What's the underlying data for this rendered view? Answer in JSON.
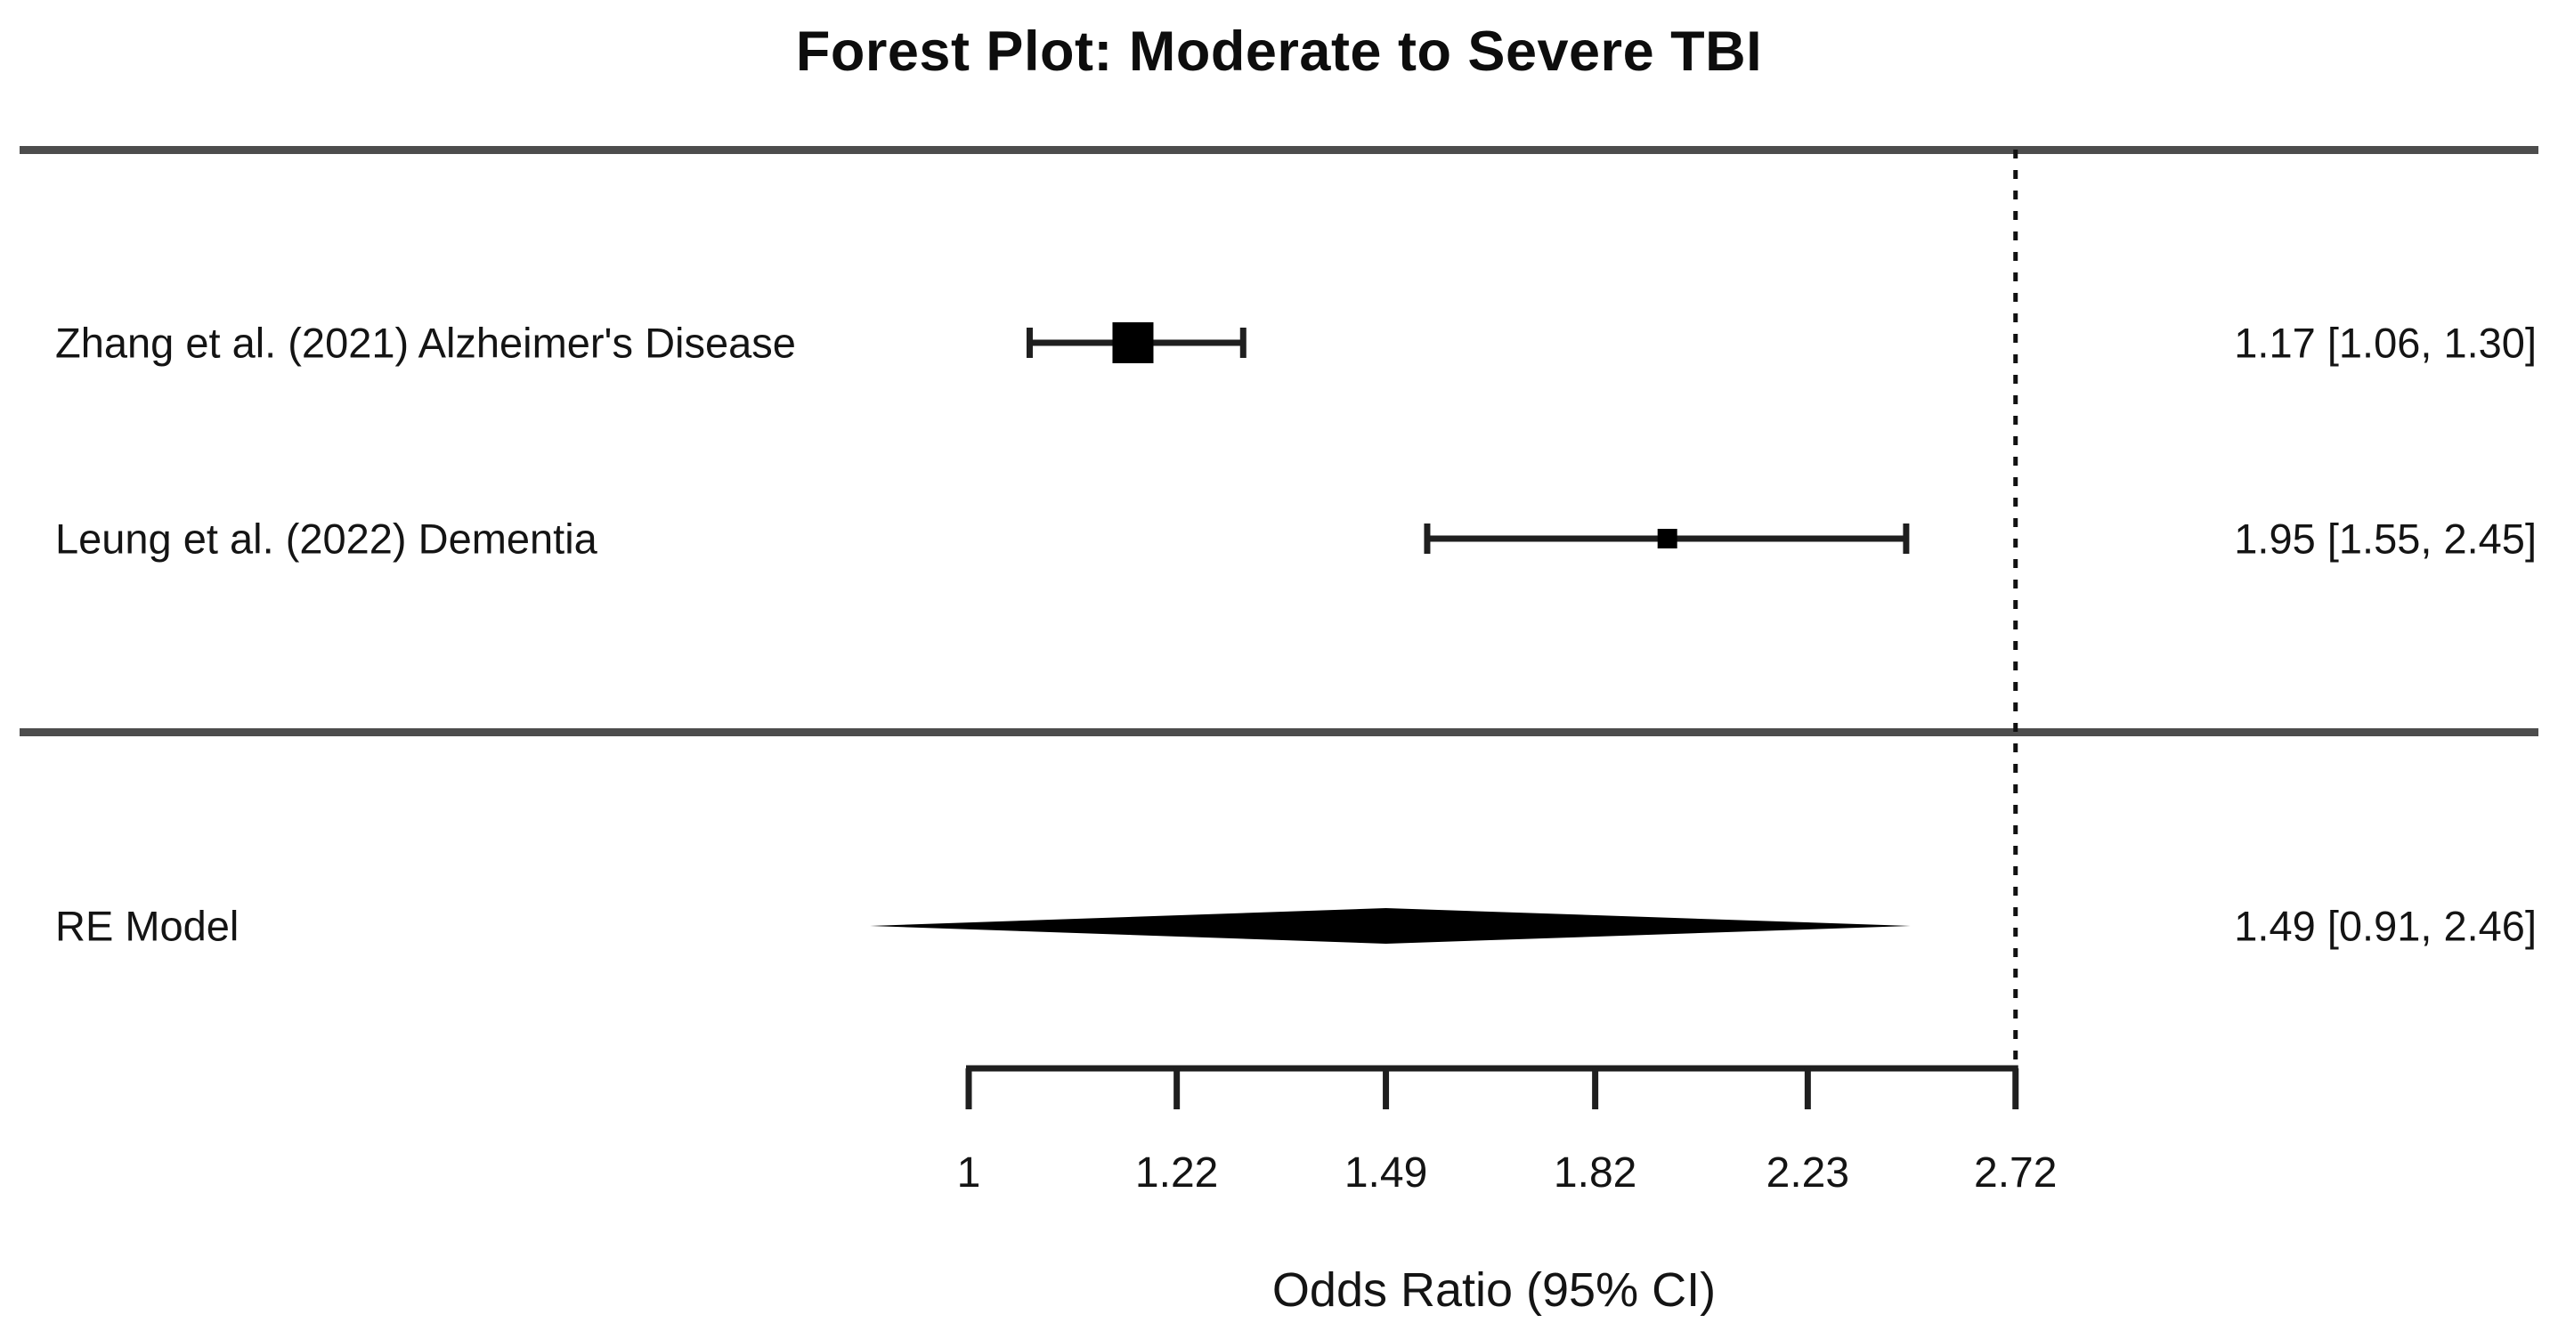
{
  "chart_data": {
    "type": "forest",
    "scale": "log",
    "title": "Forest Plot: Moderate to Severe TBI",
    "xlabel": "Odds Ratio (95% CI)",
    "x_ticks": [
      1,
      1.22,
      1.49,
      1.82,
      2.23,
      2.72
    ],
    "tick_labels": [
      "1",
      "1.22",
      "1.49",
      "1.82",
      "2.23",
      "2.72"
    ],
    "xlim": [
      1,
      2.72
    ],
    "reference_line_at": 2.72,
    "grid": false,
    "studies": [
      {
        "label": "Zhang et al. (2021) Alzheimer's Disease",
        "or": 1.17,
        "ci_low": 1.06,
        "ci_high": 1.3,
        "estimate_text": "1.17 [1.06, 1.30]"
      },
      {
        "label": "Leung et al. (2022) Dementia",
        "or": 1.95,
        "ci_low": 1.55,
        "ci_high": 2.45,
        "estimate_text": "1.95 [1.55, 2.45]"
      }
    ],
    "summary": {
      "label": "RE Model",
      "or": 1.49,
      "ci_low": 0.91,
      "ci_high": 2.46,
      "estimate_text": "1.49 [0.91, 2.46]"
    },
    "layout_hints": {
      "marker_px": [
        46,
        22
      ],
      "legend": "none",
      "colors": {
        "ink": "#1f1f1f",
        "rule": "#4d4d4d",
        "text": "#141414"
      }
    }
  }
}
